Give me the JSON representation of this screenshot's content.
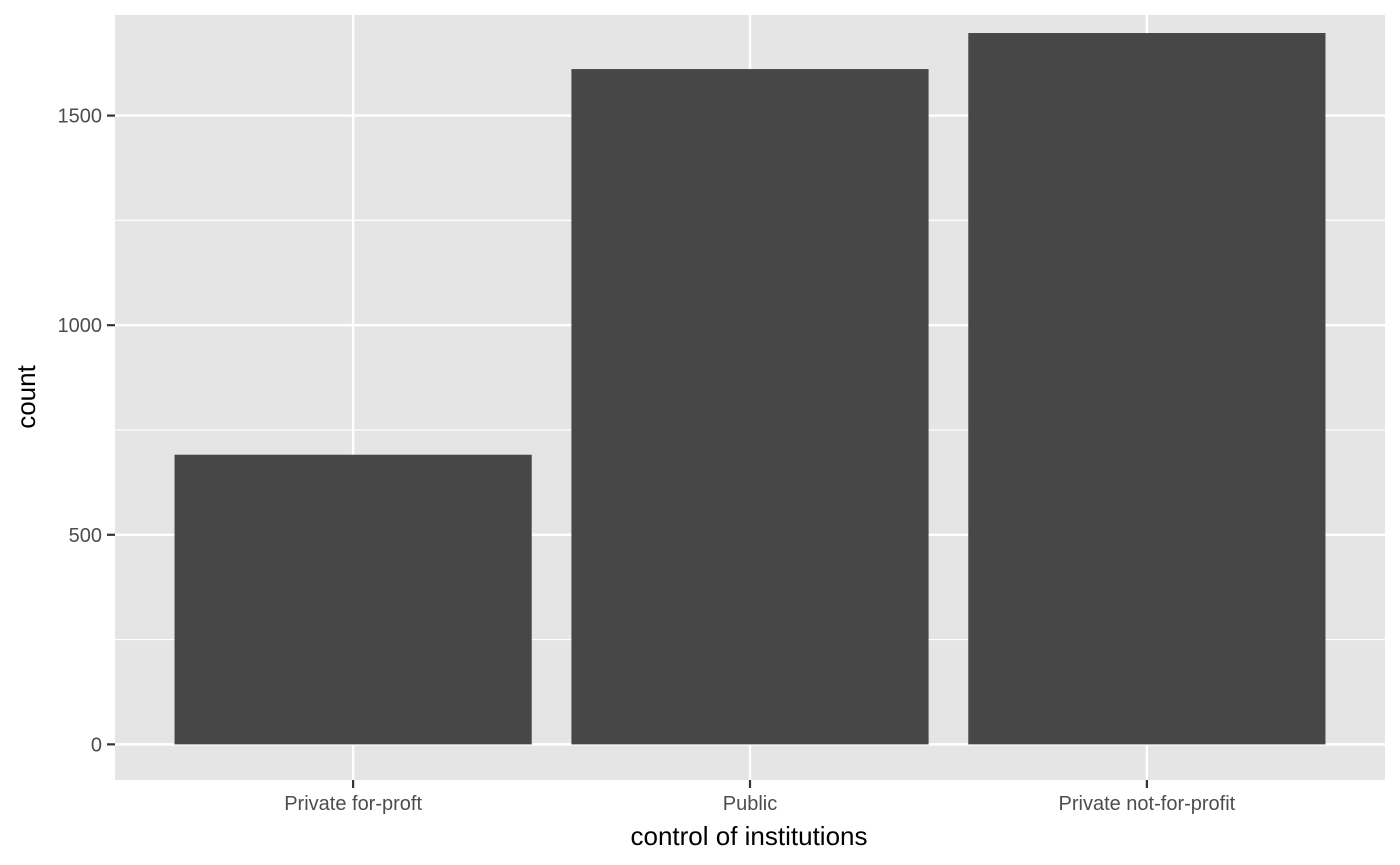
{
  "chart_data": {
    "type": "bar",
    "title": "",
    "xlabel": "control of institutions",
    "ylabel": "count",
    "categories": [
      "Private for-proft",
      "Public",
      "Private not-for-profit"
    ],
    "values": [
      691,
      1611,
      1697
    ],
    "ylim": [
      -85,
      1740
    ],
    "yticks": [
      0,
      500,
      1000,
      1500
    ],
    "yticks_minor": [
      250,
      750,
      1250
    ],
    "grid": true,
    "legend": "none",
    "colors": {
      "panel": "#e5e5e5",
      "bar": "#474747",
      "grid": "#ffffff",
      "tick_text": "#4d4d4d",
      "title_text": "#000000"
    }
  }
}
